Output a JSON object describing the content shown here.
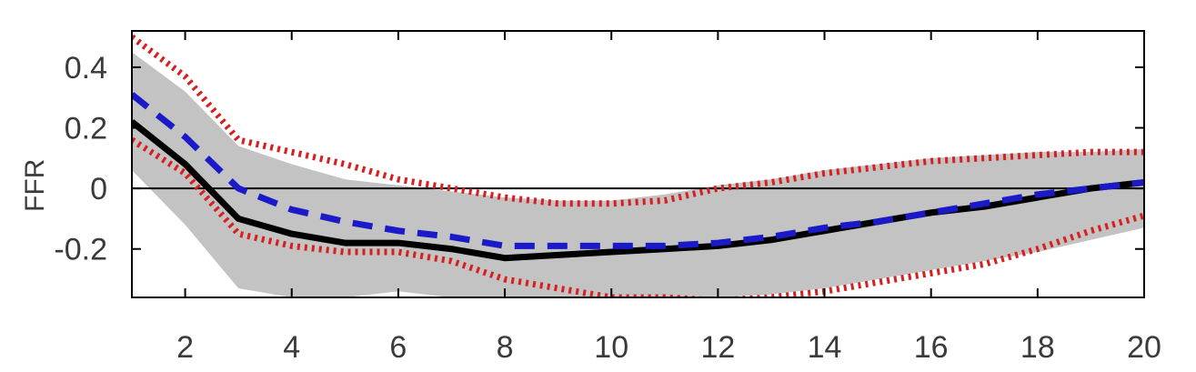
{
  "chart_data": {
    "type": "line",
    "title": "",
    "xlabel": "",
    "ylabel": "FFR",
    "xlim": [
      1,
      20
    ],
    "ylim": [
      -0.36,
      0.52
    ],
    "grid": false,
    "x_ticks": [
      2,
      4,
      6,
      8,
      10,
      12,
      14,
      16,
      18,
      20
    ],
    "y_ticks": [
      0.4,
      0.2,
      0,
      -0.2
    ],
    "y_tick_labels": [
      "0.4",
      "0.2",
      "0",
      "-0.2"
    ],
    "zero_line": true,
    "colors": {
      "band": "#c3c3c3",
      "solid": "#000000",
      "dashed": "#1a1ac8",
      "dotted": "#d81e1e"
    },
    "x": [
      1,
      2,
      3,
      4,
      5,
      6,
      7,
      8,
      9,
      10,
      11,
      12,
      13,
      14,
      15,
      16,
      17,
      18,
      19,
      20
    ],
    "series": [
      {
        "style": "shaded-band",
        "lower": [
          0.06,
          -0.12,
          -0.33,
          -0.36,
          -0.36,
          -0.34,
          -0.36,
          -0.36,
          -0.36,
          -0.36,
          -0.36,
          -0.36,
          -0.35,
          -0.33,
          -0.3,
          -0.27,
          -0.24,
          -0.21,
          -0.17,
          -0.13
        ],
        "upper": [
          0.45,
          0.32,
          0.14,
          0.08,
          0.03,
          0.01,
          -0.01,
          -0.03,
          -0.04,
          -0.04,
          -0.02,
          0.01,
          0.03,
          0.06,
          0.08,
          0.1,
          0.11,
          0.12,
          0.12,
          0.13
        ]
      },
      {
        "style": "solid",
        "values": [
          0.22,
          0.08,
          -0.1,
          -0.15,
          -0.18,
          -0.18,
          -0.2,
          -0.23,
          -0.22,
          -0.21,
          -0.2,
          -0.19,
          -0.17,
          -0.14,
          -0.11,
          -0.08,
          -0.06,
          -0.03,
          0.0,
          0.02
        ]
      },
      {
        "style": "dashed",
        "values": [
          0.31,
          0.17,
          0.0,
          -0.07,
          -0.11,
          -0.14,
          -0.16,
          -0.19,
          -0.19,
          -0.19,
          -0.19,
          -0.18,
          -0.16,
          -0.13,
          -0.11,
          -0.08,
          -0.05,
          -0.02,
          0.0,
          0.02
        ]
      },
      {
        "style": "dotted",
        "values": [
          0.5,
          0.37,
          0.16,
          0.12,
          0.08,
          0.03,
          0.0,
          -0.03,
          -0.05,
          -0.05,
          -0.04,
          0.0,
          0.02,
          0.05,
          0.07,
          0.09,
          0.1,
          0.11,
          0.12,
          0.12
        ]
      },
      {
        "style": "dotted",
        "values": [
          0.16,
          0.05,
          -0.15,
          -0.19,
          -0.21,
          -0.21,
          -0.24,
          -0.3,
          -0.33,
          -0.36,
          -0.36,
          -0.37,
          -0.36,
          -0.34,
          -0.31,
          -0.28,
          -0.25,
          -0.2,
          -0.14,
          -0.09
        ]
      }
    ]
  }
}
